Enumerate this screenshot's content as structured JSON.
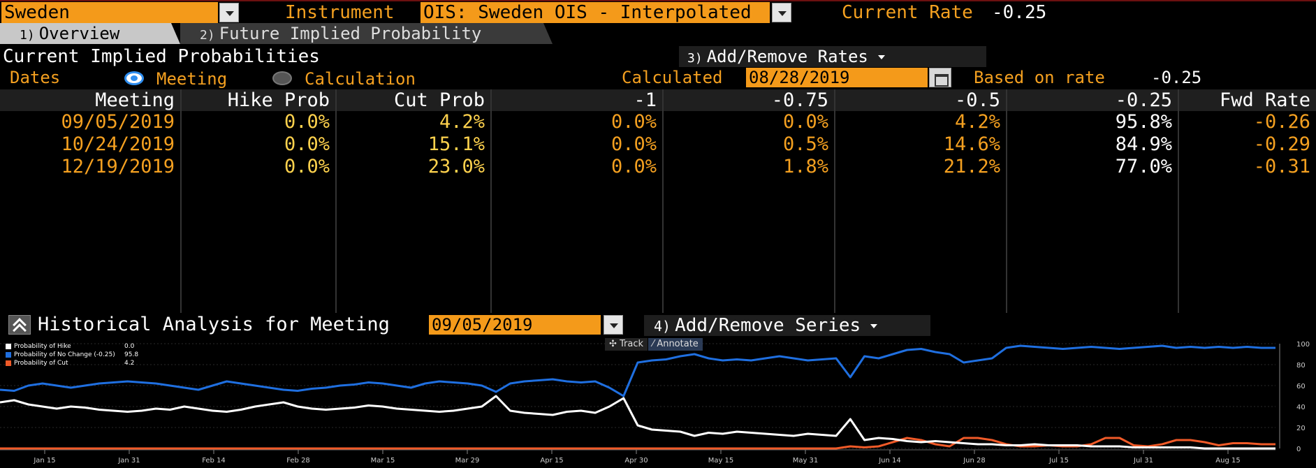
{
  "header": {
    "country": "Sweden",
    "instrument_label": "Instrument",
    "instrument_value": "OIS: Sweden OIS - Interpolated",
    "current_rate_label": "Current Rate",
    "current_rate_value": "-0.25"
  },
  "tabs": [
    {
      "num": "1)",
      "label": "Overview"
    },
    {
      "num": "2)",
      "label": "Future Implied Probability"
    }
  ],
  "section": {
    "title": "Current Implied Probabilities",
    "add_rates_num": "3)",
    "add_rates_label": "Add/Remove Rates"
  },
  "dates": {
    "label": "Dates",
    "opt_meeting": "Meeting",
    "opt_calculation": "Calculation",
    "calculated_label": "Calculated",
    "calculated_value": "08/28/2019",
    "based_label": "Based on rate",
    "based_value": "-0.25"
  },
  "table": {
    "headers": [
      "Meeting",
      "Hike Prob",
      "Cut Prob",
      "-1",
      "-0.75",
      "-0.5",
      "-0.25",
      "Fwd Rate"
    ],
    "rows": [
      [
        "09/05/2019",
        "0.0%",
        "4.2%",
        "0.0%",
        "0.0%",
        "4.2%",
        "95.8%",
        "-0.26"
      ],
      [
        "10/24/2019",
        "0.0%",
        "15.1%",
        "0.0%",
        "0.5%",
        "14.6%",
        "84.9%",
        "-0.29"
      ],
      [
        "12/19/2019",
        "0.0%",
        "23.0%",
        "0.0%",
        "1.8%",
        "21.2%",
        "77.0%",
        "-0.31"
      ]
    ]
  },
  "historical": {
    "title": "Historical Analysis for Meeting",
    "meeting": "09/05/2019",
    "add_series_num": "4)",
    "add_series_label": "Add/Remove Series",
    "track_label": "Track",
    "annotate_label": "Annotate"
  },
  "colors": {
    "hike": "#ffffff",
    "nochange": "#1f6fe0",
    "cut": "#f05a28"
  },
  "chart_data": {
    "type": "line",
    "x_ticks": [
      "Jan 15",
      "Jan 31",
      "Feb 14",
      "Feb 28",
      "Mar 15",
      "Mar 29",
      "Apr 15",
      "Apr 30",
      "May 15",
      "May 31",
      "Jun 14",
      "Jun 28",
      "Jul 15",
      "Jul 31",
      "Aug 15"
    ],
    "ylim": [
      0,
      100
    ],
    "y_ticks": [
      "0",
      "20",
      "40",
      "60",
      "80",
      "100"
    ],
    "series": [
      {
        "name": "Probability of Hike",
        "last": "0.0",
        "color": "#ffffff",
        "values": [
          44,
          46,
          42,
          40,
          38,
          40,
          39,
          37,
          36,
          35,
          36,
          38,
          37,
          40,
          38,
          36,
          35,
          37,
          40,
          42,
          44,
          40,
          38,
          37,
          38,
          39,
          41,
          40,
          38,
          37,
          36,
          35,
          36,
          38,
          40,
          50,
          36,
          34,
          33,
          32,
          35,
          36,
          34,
          40,
          48,
          22,
          18,
          17,
          16,
          12,
          15,
          14,
          16,
          15,
          14,
          13,
          12,
          14,
          13,
          12,
          28,
          8,
          10,
          9,
          7,
          6,
          7,
          6,
          5,
          4,
          4,
          3,
          3,
          4,
          3,
          3,
          3,
          2,
          2,
          2,
          1,
          1,
          1,
          1,
          1,
          0,
          0,
          0,
          0,
          0,
          0
        ]
      },
      {
        "name": "Probability of No Change (-0.25)",
        "last": "95.8",
        "color": "#1f6fe0",
        "values": [
          56,
          55,
          60,
          62,
          60,
          58,
          60,
          62,
          63,
          64,
          63,
          62,
          60,
          58,
          56,
          60,
          64,
          62,
          60,
          58,
          56,
          55,
          57,
          58,
          60,
          61,
          63,
          62,
          60,
          58,
          62,
          64,
          63,
          62,
          60,
          54,
          62,
          64,
          65,
          66,
          64,
          63,
          64,
          58,
          50,
          82,
          84,
          85,
          88,
          90,
          86,
          84,
          85,
          84,
          86,
          88,
          86,
          84,
          85,
          86,
          68,
          88,
          86,
          90,
          94,
          95,
          92,
          90,
          82,
          84,
          86,
          96,
          98,
          97,
          96,
          95,
          96,
          97,
          96,
          95,
          96,
          97,
          98,
          96,
          97,
          96,
          97,
          96,
          97,
          96,
          96
        ]
      },
      {
        "name": "Probability of Cut",
        "last": "4.2",
        "color": "#f05a28",
        "values": [
          0,
          0,
          0,
          0,
          0,
          0,
          0,
          0,
          0,
          0,
          0,
          0,
          0,
          0,
          0,
          0,
          0,
          0,
          0,
          0,
          0,
          0,
          0,
          0,
          0,
          0,
          0,
          0,
          0,
          0,
          0,
          0,
          0,
          0,
          0,
          0,
          0,
          0,
          0,
          0,
          0,
          0,
          0,
          0,
          0,
          0,
          0,
          0,
          0,
          0,
          0,
          0,
          0,
          0,
          0,
          0,
          0,
          0,
          0,
          0,
          2,
          1,
          2,
          6,
          10,
          8,
          4,
          2,
          10,
          10,
          8,
          4,
          2,
          2,
          3,
          2,
          2,
          4,
          10,
          10,
          3,
          2,
          4,
          8,
          8,
          6,
          3,
          5,
          5,
          4,
          4
        ]
      }
    ]
  }
}
